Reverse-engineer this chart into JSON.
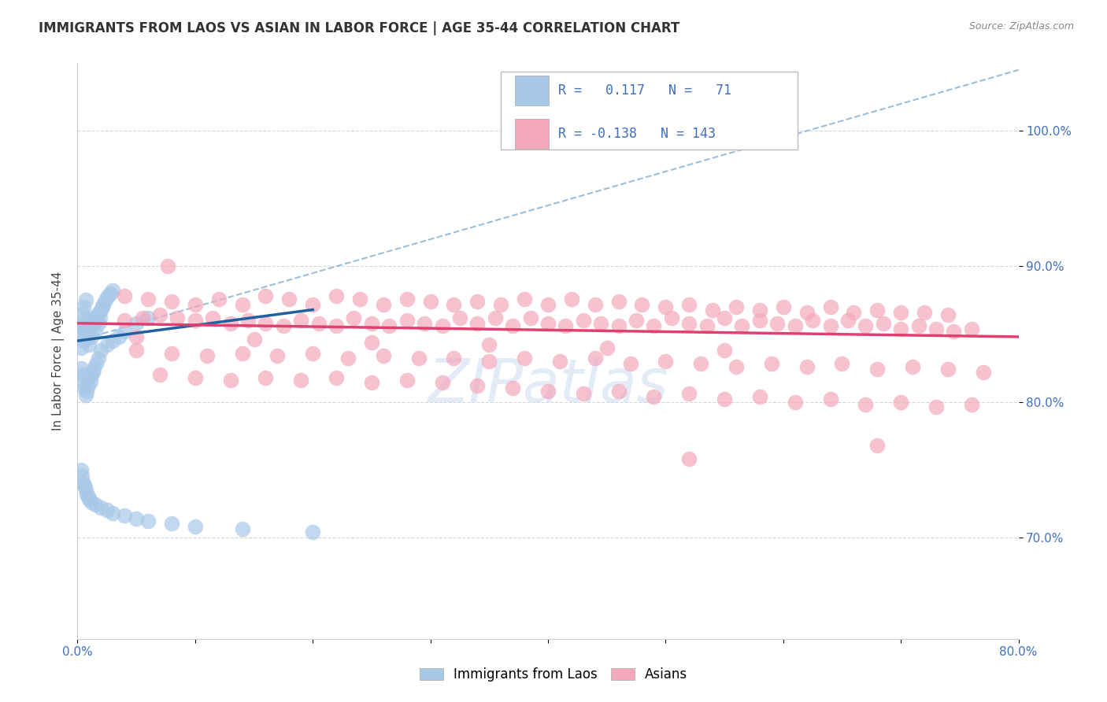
{
  "title": "IMMIGRANTS FROM LAOS VS ASIAN IN LABOR FORCE | AGE 35-44 CORRELATION CHART",
  "source": "Source: ZipAtlas.com",
  "ylabel": "In Labor Force | Age 35-44",
  "x_min": 0.0,
  "x_max": 0.8,
  "y_min": 0.625,
  "y_max": 1.05,
  "x_tick_positions": [
    0.0,
    0.1,
    0.2,
    0.3,
    0.4,
    0.5,
    0.6,
    0.7,
    0.8
  ],
  "x_tick_labels": [
    "0.0%",
    "",
    "",
    "",
    "",
    "",
    "",
    "",
    "80.0%"
  ],
  "y_tick_positions": [
    0.7,
    0.8,
    0.9,
    1.0
  ],
  "y_tick_labels": [
    "70.0%",
    "80.0%",
    "90.0%",
    "100.0%"
  ],
  "legend_label_blue": "Immigrants from Laos",
  "legend_label_pink": "Asians",
  "R_blue": 0.117,
  "N_blue": 71,
  "R_pink": -0.138,
  "N_pink": 143,
  "blue_dot_color": "#a8c8e8",
  "pink_dot_color": "#f4a8bc",
  "blue_line_color": "#2060a0",
  "pink_line_color": "#e04070",
  "dashed_line_color": "#90b8d8",
  "tick_color": "#4070c0",
  "ylabel_color": "#444444",
  "title_color": "#333333",
  "source_color": "#888888",
  "grid_color": "#cccccc",
  "watermark_color": "#d0dff0",
  "title_fontsize": 12,
  "source_fontsize": 9,
  "tick_fontsize": 11,
  "ylabel_fontsize": 11,
  "legend_fontsize": 12,
  "watermark_fontsize": 55,
  "blue_scatter_x": [
    0.003,
    0.003,
    0.004,
    0.004,
    0.005,
    0.005,
    0.005,
    0.006,
    0.007,
    0.007,
    0.008,
    0.009,
    0.01,
    0.01,
    0.011,
    0.012,
    0.013,
    0.014,
    0.015,
    0.016,
    0.017,
    0.018,
    0.019,
    0.02,
    0.021,
    0.022,
    0.024,
    0.026,
    0.028,
    0.03,
    0.003,
    0.004,
    0.005,
    0.006,
    0.007,
    0.008,
    0.009,
    0.01,
    0.011,
    0.012,
    0.013,
    0.014,
    0.016,
    0.018,
    0.02,
    0.025,
    0.03,
    0.035,
    0.04,
    0.05,
    0.06,
    0.003,
    0.004,
    0.005,
    0.006,
    0.007,
    0.008,
    0.009,
    0.01,
    0.012,
    0.015,
    0.02,
    0.025,
    0.03,
    0.04,
    0.05,
    0.06,
    0.08,
    0.1,
    0.14,
    0.2
  ],
  "blue_scatter_y": [
    0.855,
    0.84,
    0.865,
    0.85,
    0.87,
    0.855,
    0.845,
    0.86,
    0.875,
    0.848,
    0.852,
    0.858,
    0.842,
    0.86,
    0.855,
    0.848,
    0.862,
    0.858,
    0.852,
    0.86,
    0.865,
    0.858,
    0.862,
    0.868,
    0.87,
    0.872,
    0.875,
    0.878,
    0.88,
    0.882,
    0.825,
    0.815,
    0.82,
    0.81,
    0.805,
    0.808,
    0.812,
    0.818,
    0.815,
    0.82,
    0.822,
    0.825,
    0.828,
    0.832,
    0.838,
    0.842,
    0.845,
    0.848,
    0.852,
    0.858,
    0.862,
    0.75,
    0.745,
    0.74,
    0.738,
    0.735,
    0.732,
    0.73,
    0.728,
    0.726,
    0.724,
    0.722,
    0.72,
    0.718,
    0.716,
    0.714,
    0.712,
    0.71,
    0.708,
    0.706,
    0.704
  ],
  "pink_scatter_x": [
    0.04,
    0.055,
    0.07,
    0.085,
    0.1,
    0.115,
    0.13,
    0.145,
    0.16,
    0.175,
    0.19,
    0.205,
    0.22,
    0.235,
    0.25,
    0.265,
    0.28,
    0.295,
    0.31,
    0.325,
    0.34,
    0.355,
    0.37,
    0.385,
    0.4,
    0.415,
    0.43,
    0.445,
    0.46,
    0.475,
    0.49,
    0.505,
    0.52,
    0.535,
    0.55,
    0.565,
    0.58,
    0.595,
    0.61,
    0.625,
    0.64,
    0.655,
    0.67,
    0.685,
    0.7,
    0.715,
    0.73,
    0.745,
    0.76,
    0.04,
    0.06,
    0.08,
    0.1,
    0.12,
    0.14,
    0.16,
    0.18,
    0.2,
    0.22,
    0.24,
    0.26,
    0.28,
    0.3,
    0.32,
    0.34,
    0.36,
    0.38,
    0.4,
    0.42,
    0.44,
    0.46,
    0.48,
    0.5,
    0.52,
    0.54,
    0.56,
    0.58,
    0.6,
    0.62,
    0.64,
    0.66,
    0.68,
    0.7,
    0.72,
    0.74,
    0.05,
    0.08,
    0.11,
    0.14,
    0.17,
    0.2,
    0.23,
    0.26,
    0.29,
    0.32,
    0.35,
    0.38,
    0.41,
    0.44,
    0.47,
    0.5,
    0.53,
    0.56,
    0.59,
    0.62,
    0.65,
    0.68,
    0.71,
    0.74,
    0.77,
    0.07,
    0.1,
    0.13,
    0.16,
    0.19,
    0.22,
    0.25,
    0.28,
    0.31,
    0.34,
    0.37,
    0.4,
    0.43,
    0.46,
    0.49,
    0.52,
    0.55,
    0.58,
    0.61,
    0.64,
    0.67,
    0.7,
    0.73,
    0.76,
    0.077,
    0.52,
    0.68,
    0.05,
    0.15,
    0.25,
    0.35,
    0.45,
    0.55
  ],
  "pink_scatter_y": [
    0.86,
    0.862,
    0.864,
    0.862,
    0.86,
    0.862,
    0.858,
    0.86,
    0.858,
    0.856,
    0.86,
    0.858,
    0.856,
    0.862,
    0.858,
    0.856,
    0.86,
    0.858,
    0.856,
    0.862,
    0.858,
    0.862,
    0.856,
    0.862,
    0.858,
    0.856,
    0.86,
    0.858,
    0.856,
    0.86,
    0.856,
    0.862,
    0.858,
    0.856,
    0.862,
    0.856,
    0.86,
    0.858,
    0.856,
    0.86,
    0.856,
    0.86,
    0.856,
    0.858,
    0.854,
    0.856,
    0.854,
    0.852,
    0.854,
    0.878,
    0.876,
    0.874,
    0.872,
    0.876,
    0.872,
    0.878,
    0.876,
    0.872,
    0.878,
    0.876,
    0.872,
    0.876,
    0.874,
    0.872,
    0.874,
    0.872,
    0.876,
    0.872,
    0.876,
    0.872,
    0.874,
    0.872,
    0.87,
    0.872,
    0.868,
    0.87,
    0.868,
    0.87,
    0.866,
    0.87,
    0.866,
    0.868,
    0.866,
    0.866,
    0.864,
    0.838,
    0.836,
    0.834,
    0.836,
    0.834,
    0.836,
    0.832,
    0.834,
    0.832,
    0.832,
    0.83,
    0.832,
    0.83,
    0.832,
    0.828,
    0.83,
    0.828,
    0.826,
    0.828,
    0.826,
    0.828,
    0.824,
    0.826,
    0.824,
    0.822,
    0.82,
    0.818,
    0.816,
    0.818,
    0.816,
    0.818,
    0.814,
    0.816,
    0.814,
    0.812,
    0.81,
    0.808,
    0.806,
    0.808,
    0.804,
    0.806,
    0.802,
    0.804,
    0.8,
    0.802,
    0.798,
    0.8,
    0.796,
    0.798,
    0.9,
    0.758,
    0.768,
    0.848,
    0.846,
    0.844,
    0.842,
    0.84,
    0.838
  ]
}
